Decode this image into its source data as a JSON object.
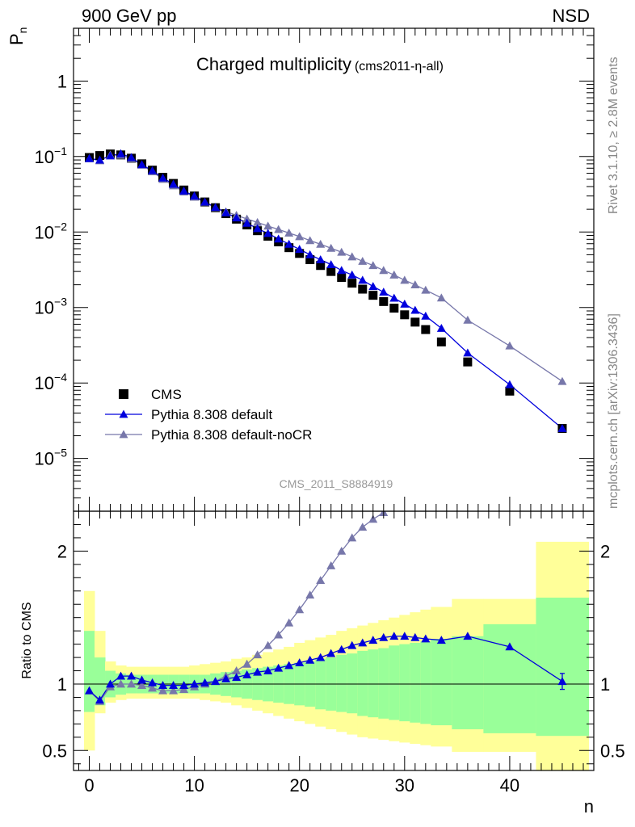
{
  "header": {
    "left": "900 GeV pp",
    "right": "NSD"
  },
  "title": {
    "main": "Charged multiplicity",
    "sub": "(cms2011-η-all)"
  },
  "side_text": {
    "upper": "Rivet 3.1.10, ≥ 2.8M events",
    "lower": "mcplots.cern.ch [arXiv:1306.3436]"
  },
  "watermark": "CMS_2011_S8884919",
  "axes": {
    "upper_ylabel": "P",
    "upper_ylabel_sub": "n",
    "lower_ylabel": "Ratio to CMS",
    "xlabel": "n",
    "upper_yticks": [
      {
        "base": "1",
        "exp": ""
      },
      {
        "base": "10",
        "exp": "−1"
      },
      {
        "base": "10",
        "exp": "−2"
      },
      {
        "base": "10",
        "exp": "−3"
      },
      {
        "base": "10",
        "exp": "−4"
      },
      {
        "base": "10",
        "exp": "−5"
      }
    ],
    "lower_yticks": [
      "2",
      "1",
      "0.5"
    ],
    "xticks": [
      "0",
      "10",
      "20",
      "30",
      "40"
    ]
  },
  "legend": [
    {
      "label": "CMS"
    },
    {
      "label": "Pythia 8.308 default"
    },
    {
      "label": "Pythia 8.308 default-noCR"
    }
  ],
  "colors": {
    "cms": "#000000",
    "default": "#0000dd",
    "nocr": "#7777aa",
    "band_inner": "#99ff99",
    "band_outer": "#ffff99"
  },
  "chart_data": {
    "type": "scatter",
    "title": "Charged multiplicity",
    "xlabel": "n",
    "ylabel": "P_n",
    "xlim": [
      -1.5,
      48
    ],
    "ylim": [
      2e-06,
      5
    ],
    "yscale": "log",
    "ratio_ylim": [
      0.35,
      2.3
    ],
    "ratio_ylabel": "Ratio to CMS",
    "legend_position": "lower-left",
    "series": [
      {
        "name": "CMS",
        "x": [
          0,
          1,
          2,
          3,
          4,
          5,
          6,
          7,
          8,
          9,
          10,
          11,
          12,
          13,
          14,
          15,
          16,
          17,
          18,
          19,
          20,
          21,
          22,
          23,
          24,
          25,
          26,
          27,
          28,
          29,
          30,
          31,
          32,
          33.5,
          36,
          40,
          45
        ],
        "y": [
          0.097,
          0.103,
          0.108,
          0.105,
          0.095,
          0.08,
          0.066,
          0.053,
          0.044,
          0.036,
          0.03,
          0.025,
          0.021,
          0.0175,
          0.0148,
          0.0124,
          0.0104,
          0.0088,
          0.0074,
          0.0062,
          0.0052,
          0.0043,
          0.0036,
          0.003,
          0.0025,
          0.0021,
          0.00175,
          0.00145,
          0.0012,
          0.00098,
          0.0008,
          0.00064,
          0.00051,
          0.00035,
          0.00019,
          7.8e-05,
          2.5e-05
        ]
      },
      {
        "name": "Pythia 8.308 default",
        "x": [
          0,
          1,
          2,
          3,
          4,
          5,
          6,
          7,
          8,
          9,
          10,
          11,
          12,
          13,
          14,
          15,
          16,
          17,
          18,
          19,
          20,
          21,
          22,
          23,
          24,
          25,
          26,
          27,
          28,
          29,
          30,
          31,
          32,
          33.5,
          36,
          40,
          45
        ],
        "y": [
          0.094,
          0.09,
          0.102,
          0.109,
          0.097,
          0.078,
          0.065,
          0.052,
          0.043,
          0.035,
          0.03,
          0.025,
          0.0212,
          0.018,
          0.0154,
          0.0131,
          0.0111,
          0.0096,
          0.0081,
          0.0069,
          0.0059,
          0.005,
          0.0043,
          0.0037,
          0.0031,
          0.0027,
          0.0023,
          0.0019,
          0.0016,
          0.00133,
          0.00111,
          0.00092,
          0.00077,
          0.00053,
          0.00025,
          9.5e-05,
          2.5e-05
        ]
      },
      {
        "name": "Pythia 8.308 default-noCR",
        "x": [
          0,
          1,
          2,
          3,
          4,
          5,
          6,
          7,
          8,
          9,
          10,
          11,
          12,
          13,
          14,
          15,
          16,
          17,
          18,
          19,
          20,
          21,
          22,
          23,
          24,
          25,
          26,
          27,
          28,
          29,
          30,
          31,
          32,
          33.5,
          36,
          40,
          45
        ],
        "y": [
          0.094,
          0.088,
          0.105,
          0.104,
          0.094,
          0.077,
          0.063,
          0.05,
          0.041,
          0.034,
          0.029,
          0.0248,
          0.021,
          0.0186,
          0.0167,
          0.0149,
          0.0134,
          0.012,
          0.0108,
          0.0097,
          0.0087,
          0.0077,
          0.0069,
          0.0061,
          0.0054,
          0.0047,
          0.0041,
          0.0036,
          0.0031,
          0.0027,
          0.0023,
          0.002,
          0.0017,
          0.00134,
          0.00068,
          0.00031,
          0.000105
        ]
      }
    ],
    "ratio_series": [
      {
        "name": "Pythia 8.308 default",
        "x": [
          0,
          1,
          2,
          3,
          4,
          5,
          6,
          7,
          8,
          9,
          10,
          11,
          12,
          13,
          14,
          15,
          16,
          17,
          18,
          19,
          20,
          21,
          22,
          23,
          24,
          25,
          26,
          27,
          28,
          29,
          30,
          31,
          32,
          33.5,
          36,
          40,
          45
        ],
        "y": [
          0.95,
          0.88,
          1.0,
          1.06,
          1.06,
          1.03,
          1.01,
          0.99,
          0.99,
          0.99,
          1.0,
          1.01,
          1.02,
          1.04,
          1.05,
          1.07,
          1.09,
          1.1,
          1.12,
          1.14,
          1.16,
          1.18,
          1.2,
          1.23,
          1.26,
          1.29,
          1.31,
          1.33,
          1.35,
          1.36,
          1.36,
          1.35,
          1.34,
          1.33,
          1.36,
          1.28,
          1.02
        ]
      },
      {
        "name": "Pythia 8.308 default-noCR",
        "x": [
          0,
          1,
          2,
          3,
          4,
          5,
          6,
          7,
          8,
          9,
          10,
          11,
          12,
          13,
          14,
          15,
          16,
          17,
          18,
          19,
          20,
          21,
          22,
          23,
          24,
          25,
          26,
          27,
          28
        ],
        "y": [
          0.95,
          0.87,
          0.98,
          1.0,
          1.0,
          0.99,
          0.97,
          0.95,
          0.95,
          0.96,
          0.98,
          1.0,
          1.02,
          1.06,
          1.1,
          1.15,
          1.22,
          1.29,
          1.37,
          1.46,
          1.56,
          1.67,
          1.78,
          1.89,
          2.0,
          2.1,
          2.18,
          2.24,
          2.29
        ]
      }
    ],
    "uncertainty_bands": {
      "x_edges": [
        -0.5,
        0.5,
        1.5,
        2.5,
        3.5,
        4.5,
        5.5,
        6.5,
        7.5,
        8.5,
        9.5,
        10.5,
        11.5,
        12.5,
        13.5,
        14.5,
        15.5,
        16.5,
        17.5,
        18.5,
        19.5,
        20.5,
        21.5,
        22.5,
        23.5,
        24.5,
        25.5,
        26.5,
        27.5,
        28.5,
        29.5,
        30.5,
        31.5,
        32.5,
        34.5,
        37.5,
        42.5,
        47.5
      ],
      "inner_lo": [
        0.79,
        0.84,
        0.9,
        0.92,
        0.93,
        0.93,
        0.93,
        0.93,
        0.93,
        0.93,
        0.93,
        0.93,
        0.92,
        0.91,
        0.9,
        0.89,
        0.88,
        0.87,
        0.86,
        0.85,
        0.84,
        0.83,
        0.81,
        0.8,
        0.79,
        0.78,
        0.76,
        0.75,
        0.74,
        0.73,
        0.72,
        0.71,
        0.7,
        0.69,
        0.66,
        0.63,
        0.61
      ],
      "inner_hi": [
        1.4,
        1.2,
        1.1,
        1.08,
        1.07,
        1.07,
        1.07,
        1.07,
        1.07,
        1.07,
        1.07,
        1.07,
        1.08,
        1.09,
        1.1,
        1.11,
        1.12,
        1.13,
        1.14,
        1.15,
        1.16,
        1.17,
        1.19,
        1.2,
        1.22,
        1.23,
        1.25,
        1.26,
        1.27,
        1.29,
        1.3,
        1.31,
        1.32,
        1.34,
        1.36,
        1.45,
        1.65
      ],
      "outer_lo": [
        0.5,
        0.78,
        0.86,
        0.88,
        0.89,
        0.89,
        0.89,
        0.89,
        0.89,
        0.89,
        0.89,
        0.88,
        0.87,
        0.86,
        0.84,
        0.82,
        0.8,
        0.78,
        0.76,
        0.74,
        0.72,
        0.7,
        0.68,
        0.66,
        0.64,
        0.62,
        0.6,
        0.59,
        0.58,
        0.57,
        0.56,
        0.55,
        0.54,
        0.53,
        0.49,
        0.49,
        0.3
      ],
      "outer_hi": [
        1.7,
        1.4,
        1.17,
        1.14,
        1.13,
        1.13,
        1.13,
        1.13,
        1.13,
        1.13,
        1.14,
        1.15,
        1.16,
        1.17,
        1.19,
        1.2,
        1.22,
        1.24,
        1.26,
        1.28,
        1.31,
        1.33,
        1.35,
        1.37,
        1.4,
        1.42,
        1.44,
        1.46,
        1.48,
        1.5,
        1.52,
        1.54,
        1.56,
        1.58,
        1.64,
        1.64,
        2.07
      ]
    }
  }
}
